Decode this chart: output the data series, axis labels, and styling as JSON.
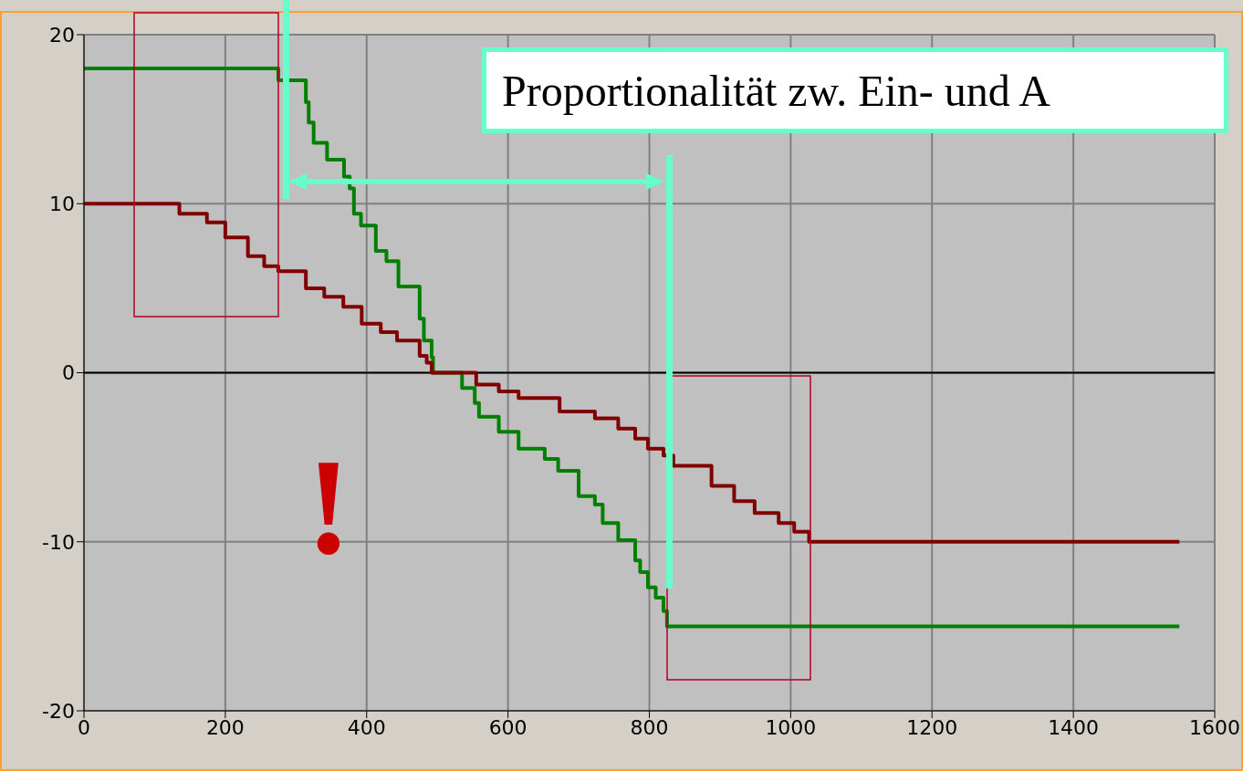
{
  "chart_data": {
    "type": "step",
    "xlim": [
      0,
      1600
    ],
    "xticks": [
      0,
      200,
      400,
      600,
      800,
      1000,
      1200,
      1400,
      1600
    ],
    "ylim": [
      -20,
      20
    ],
    "yticks": [
      -20,
      -10,
      0,
      10,
      20
    ],
    "grid": true,
    "line_style": "solid",
    "marker": "none",
    "ref_lines": [
      {
        "axis": "y",
        "value": 0,
        "color": "#000000"
      }
    ],
    "annotations": [
      "Proportionalität zw. Ein- und A",
      "!"
    ],
    "series": [
      {
        "color": "#008000",
        "x": [
          0,
          275,
          314,
          318,
          325,
          344,
          368,
          376,
          382,
          392,
          413,
          428,
          445,
          475,
          481,
          492,
          494,
          535,
          553,
          559,
          587,
          615,
          652,
          671,
          700,
          723,
          734,
          756,
          780,
          787,
          798,
          809,
          820,
          825,
          1550
        ],
        "values": [
          18,
          17.3,
          16,
          14.8,
          13.6,
          12.6,
          11.6,
          10.9,
          9.4,
          8.7,
          7.2,
          6.6,
          5.1,
          3.2,
          1.9,
          0.9,
          0,
          -0.9,
          -1.8,
          -2.6,
          -3.5,
          -4.5,
          -5.1,
          -5.8,
          -7.3,
          -7.8,
          -8.9,
          -9.9,
          -11.1,
          -11.8,
          -12.7,
          -13.3,
          -14.1,
          -15,
          -15
        ]
      },
      {
        "color": "#800000",
        "x": [
          0,
          135,
          174,
          200,
          232,
          255,
          275,
          314,
          340,
          367,
          393,
          420,
          443,
          475,
          485,
          492,
          555,
          587,
          615,
          673,
          723,
          756,
          780,
          798,
          820,
          834,
          888,
          920,
          949,
          983,
          1005,
          1026,
          1550
        ],
        "values": [
          10,
          9.4,
          8.9,
          8,
          6.9,
          6.3,
          6,
          5,
          4.5,
          3.9,
          2.9,
          2.4,
          1.9,
          1,
          0.6,
          0,
          -0.7,
          -1.1,
          -1.5,
          -2.3,
          -2.7,
          -3.3,
          -3.9,
          -4.5,
          -4.9,
          -5.5,
          -6.7,
          -7.6,
          -8.3,
          -8.9,
          -9.4,
          -10,
          -10
        ]
      }
    ]
  }
}
